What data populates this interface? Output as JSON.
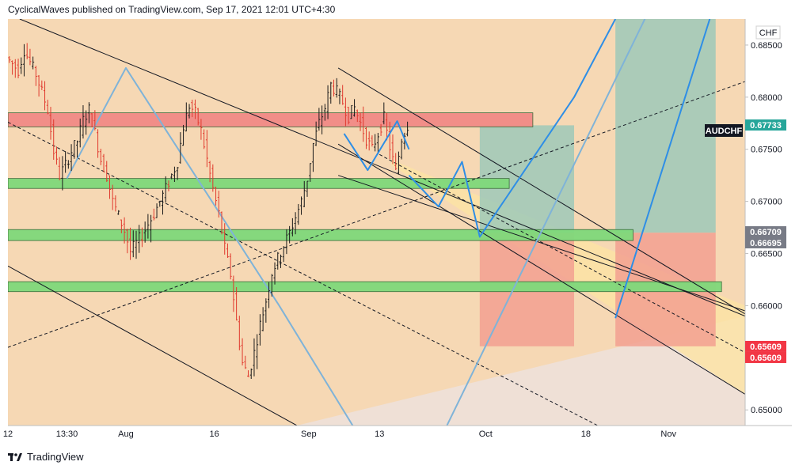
{
  "header": {
    "publisher": "CyclicalWaves",
    "published_on": "published on TradingView.com, Sep 17, 2021 12:01 UTC+4:30"
  },
  "footer": {
    "brand": "TradingView"
  },
  "colors": {
    "background_outer": "#efe0d6",
    "channel_fill": "#f6d8b4",
    "candle_up": "#1a1a1a",
    "candle_down": "#e03a2e",
    "zone_red": "#f08a86",
    "zone_green": "#7ed87a",
    "projection_blue": "#2e8ee6",
    "channel_blue": "#7fb3d8",
    "profit_fill": "#9ec9b9",
    "loss_fill": "#f2a091",
    "price_badge_green": "#26a69a",
    "price_badge_red": "#f23645",
    "price_badge_grey": "#787b86"
  },
  "chart_data": {
    "type": "candlestick",
    "symbol": "AUDCHF",
    "currency": "CHF",
    "y_axis": {
      "range": [
        0.6485,
        0.6875
      ],
      "ticks": [
        "0.68500",
        "0.68000",
        "0.67500",
        "0.67000",
        "0.66500",
        "0.66000",
        "0.65000"
      ]
    },
    "x_axis": {
      "range": [
        "2021-07-12",
        "2021-11-14"
      ],
      "ticks": [
        {
          "label": "12",
          "date": "2021-07-12"
        },
        {
          "label": "13:30",
          "date": "2021-07-22"
        },
        {
          "label": "Aug",
          "date": "2021-08-01"
        },
        {
          "label": "16",
          "date": "2021-08-16"
        },
        {
          "label": "Sep",
          "date": "2021-09-01"
        },
        {
          "label": "13",
          "date": "2021-09-13"
        },
        {
          "label": "Oct",
          "date": "2021-10-01"
        },
        {
          "label": "18",
          "date": "2021-10-18"
        },
        {
          "label": "Nov",
          "date": "2021-11-01"
        }
      ]
    },
    "candles_path": [
      [
        "2021-07-12",
        0.6838
      ],
      [
        "2021-07-14",
        0.6826
      ],
      [
        "2021-07-15",
        0.6845
      ],
      [
        "2021-07-17",
        0.6822
      ],
      [
        "2021-07-19",
        0.6788
      ],
      [
        "2021-07-20",
        0.6748
      ],
      [
        "2021-07-21",
        0.6725
      ],
      [
        "2021-07-22",
        0.6735
      ],
      [
        "2021-07-23",
        0.6748
      ],
      [
        "2021-07-24",
        0.6758
      ],
      [
        "2021-07-25",
        0.6778
      ],
      [
        "2021-07-26",
        0.6788
      ],
      [
        "2021-07-27",
        0.6766
      ],
      [
        "2021-07-28",
        0.674
      ],
      [
        "2021-07-29",
        0.6725
      ],
      [
        "2021-07-30",
        0.67
      ],
      [
        "2021-08-01",
        0.6672
      ],
      [
        "2021-08-02",
        0.6652
      ],
      [
        "2021-08-04",
        0.6668
      ],
      [
        "2021-08-06",
        0.6688
      ],
      [
        "2021-08-08",
        0.6712
      ],
      [
        "2021-08-10",
        0.6738
      ],
      [
        "2021-08-11",
        0.6772
      ],
      [
        "2021-08-12",
        0.6792
      ],
      [
        "2021-08-13",
        0.6785
      ],
      [
        "2021-08-14",
        0.6768
      ],
      [
        "2021-08-15",
        0.674
      ],
      [
        "2021-08-16",
        0.6712
      ],
      [
        "2021-08-17",
        0.6688
      ],
      [
        "2021-08-18",
        0.6655
      ],
      [
        "2021-08-19",
        0.663
      ],
      [
        "2021-08-20",
        0.6585
      ],
      [
        "2021-08-21",
        0.6545
      ],
      [
        "2021-08-22",
        0.6532
      ],
      [
        "2021-08-23",
        0.6555
      ],
      [
        "2021-08-24",
        0.6582
      ],
      [
        "2021-08-25",
        0.6605
      ],
      [
        "2021-08-26",
        0.6632
      ],
      [
        "2021-08-27",
        0.6645
      ],
      [
        "2021-08-28",
        0.6658
      ],
      [
        "2021-08-29",
        0.667
      ],
      [
        "2021-08-30",
        0.6685
      ],
      [
        "2021-08-31",
        0.67
      ],
      [
        "2021-09-01",
        0.6722
      ],
      [
        "2021-09-02",
        0.6755
      ],
      [
        "2021-09-03",
        0.6775
      ],
      [
        "2021-09-04",
        0.679
      ],
      [
        "2021-09-05",
        0.6812
      ],
      [
        "2021-09-06",
        0.6805
      ],
      [
        "2021-09-07",
        0.6795
      ],
      [
        "2021-09-08",
        0.6782
      ],
      [
        "2021-09-09",
        0.679
      ],
      [
        "2021-09-10",
        0.6775
      ],
      [
        "2021-09-11",
        0.676
      ],
      [
        "2021-09-12",
        0.675
      ],
      [
        "2021-09-13",
        0.6765
      ],
      [
        "2021-09-14",
        0.678
      ],
      [
        "2021-09-15",
        0.6752
      ],
      [
        "2021-09-16",
        0.6728
      ],
      [
        "2021-09-17",
        0.676
      ],
      [
        "2021-09-18",
        0.6773
      ]
    ],
    "last_price": "0.67733",
    "price_badges": [
      {
        "label": "0.67733",
        "value": 0.67733,
        "color": "#26a69a"
      },
      {
        "label": "0.66709",
        "value": 0.66709,
        "color": "#787b86"
      },
      {
        "label": "0.66695",
        "value": 0.66695,
        "color": "#787b86"
      },
      {
        "label": "0.65609",
        "value": 0.65609,
        "color": "#f23645"
      },
      {
        "label": "0.65609",
        "value": 0.65609,
        "color": "#f23645"
      }
    ],
    "horizontal_zones": [
      {
        "kind": "resistance",
        "color": "#f08a86",
        "from": "2021-07-12",
        "to": "2021-10-09",
        "low": 0.6776,
        "high": 0.6785
      },
      {
        "kind": "support",
        "color": "#7ed87a",
        "from": "2021-07-12",
        "to": "2021-10-05",
        "low": 0.6717,
        "high": 0.6722
      },
      {
        "kind": "support",
        "color": "#7ed87a",
        "from": "2021-07-12",
        "to": "2021-10-26",
        "low": 0.6667,
        "high": 0.6673
      },
      {
        "kind": "support",
        "color": "#7ed87a",
        "from": "2021-07-12",
        "to": "2021-11-10",
        "low": 0.6618,
        "high": 0.6623
      }
    ],
    "position_boxes": [
      {
        "from": "2021-09-30",
        "to": "2021-10-16",
        "target": 0.6773,
        "entry": 0.667,
        "stop": 0.6561
      },
      {
        "from": "2021-10-23",
        "to": "2021-11-09",
        "target": 0.6875,
        "entry": 0.667,
        "stop": 0.6561
      }
    ],
    "projection_path": [
      [
        "2021-09-18",
        0.6725
      ],
      [
        "2021-09-23",
        0.6695
      ],
      [
        "2021-09-27",
        0.6738
      ],
      [
        "2021-09-30",
        0.6666
      ],
      [
        "2021-10-16",
        0.68
      ],
      [
        "2021-10-23",
        0.6875
      ]
    ],
    "projection_path_2": [
      [
        "2021-10-23",
        0.6588
      ],
      [
        "2021-11-08",
        0.6875
      ]
    ],
    "channel_zigzag": [
      [
        "2021-07-22",
        0.6722
      ],
      [
        "2021-08-01",
        0.6828
      ],
      [
        "2021-08-27",
        0.66
      ],
      [
        "2021-09-09",
        0.648
      ]
    ],
    "channel_zigzag_2": [
      [
        "2021-09-24",
        0.648
      ],
      [
        "2021-10-28",
        0.6875
      ]
    ],
    "inner_zigzag": [
      [
        "2021-09-07",
        0.6765
      ],
      [
        "2021-09-11",
        0.673
      ],
      [
        "2021-09-16",
        0.6777
      ],
      [
        "2021-09-18",
        0.675
      ]
    ],
    "trend_lines": [
      {
        "style": "solid",
        "color": "#131722",
        "from": [
          "2021-07-14",
          0.6875
        ],
        "to": [
          "2021-11-14",
          0.659
        ]
      },
      {
        "style": "solid",
        "color": "#131722",
        "from": [
          "2021-07-12",
          0.6638
        ],
        "to": [
          "2021-08-30",
          0.6485
        ]
      },
      {
        "style": "dashed",
        "color": "#131722",
        "from": [
          "2021-07-12",
          0.6776
        ],
        "to": [
          "2021-10-20",
          0.6485
        ]
      },
      {
        "style": "dashed",
        "color": "#131722",
        "from": [
          "2021-07-12",
          0.656
        ],
        "to": [
          "2021-11-14",
          0.6815
        ]
      },
      {
        "style": "solid",
        "color": "#131722",
        "from": [
          "2021-09-06",
          0.6828
        ],
        "to": [
          "2021-11-14",
          0.6592
        ]
      },
      {
        "style": "solid",
        "color": "#131722",
        "from": [
          "2021-09-06",
          0.6755
        ],
        "to": [
          "2021-11-14",
          0.6515
        ]
      },
      {
        "style": "dashed",
        "color": "#131722",
        "from": [
          "2021-09-13",
          0.6745
        ],
        "to": [
          "2021-11-14",
          0.6555
        ]
      },
      {
        "style": "solid",
        "color": "#131722",
        "from": [
          "2021-09-06",
          0.6725
        ],
        "to": [
          "2021-11-14",
          0.6595
        ]
      }
    ],
    "fills": [
      {
        "kind": "channel",
        "color": "#f6d8b4",
        "polygon": [
          [
            "2021-07-12",
            0.6875
          ],
          [
            "2021-11-14",
            0.6875
          ],
          [
            "2021-11-14",
            0.659
          ],
          [
            "2021-08-30",
            0.6485
          ],
          [
            "2021-07-12",
            0.6485
          ]
        ]
      },
      {
        "kind": "channel",
        "color": "#fde4a4",
        "polygon": [
          [
            "2021-09-15",
            0.674
          ],
          [
            "2021-11-14",
            0.66
          ],
          [
            "2021-11-14",
            0.6515
          ],
          [
            "2021-09-15",
            0.6735
          ]
        ]
      }
    ]
  }
}
